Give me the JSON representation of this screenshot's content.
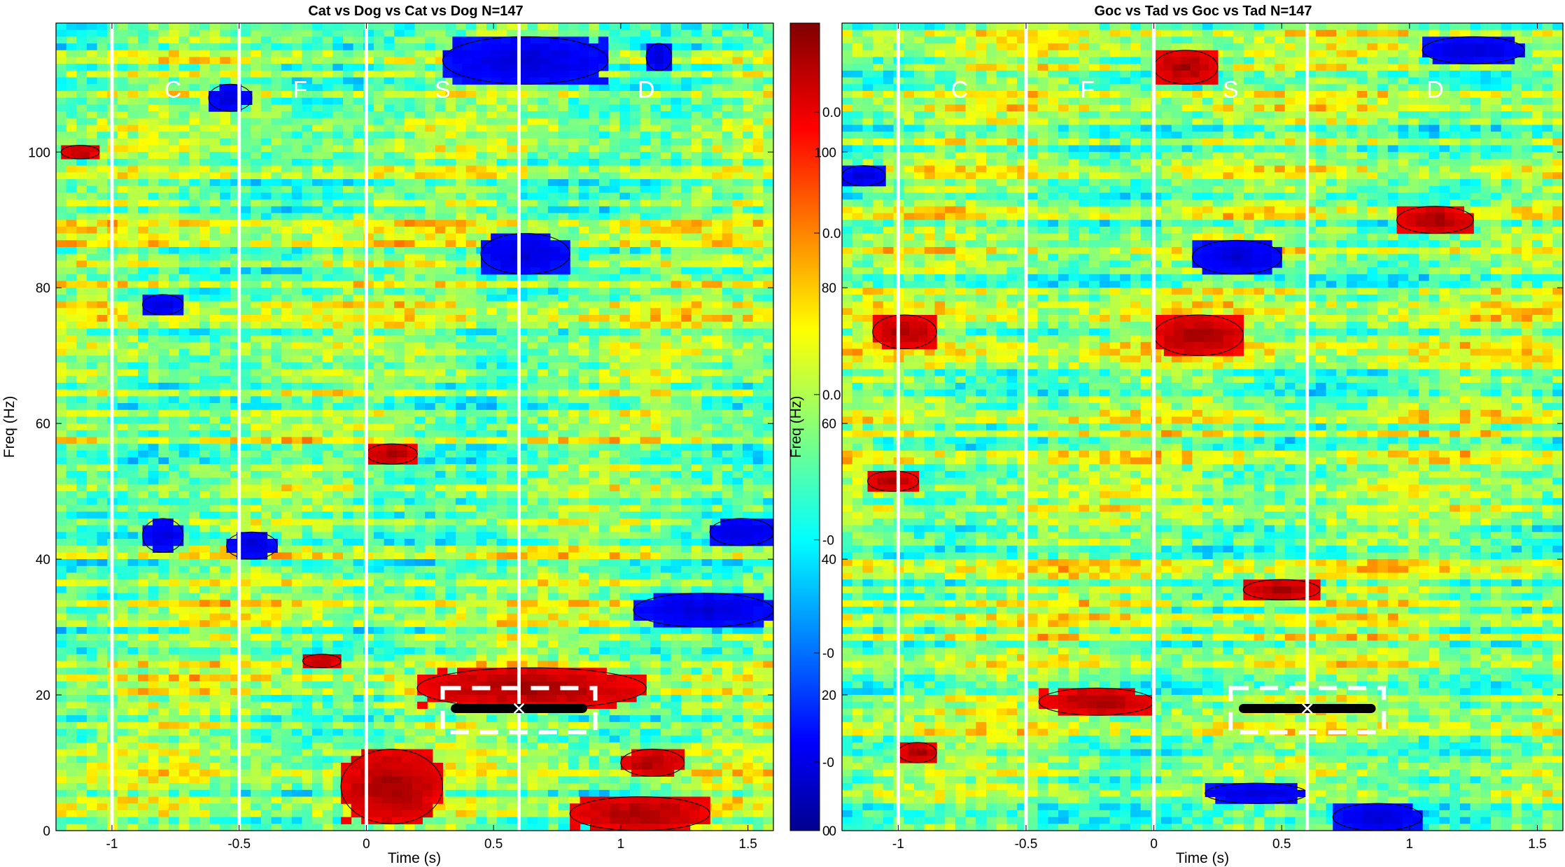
{
  "chart_data": [
    {
      "type": "heatmap",
      "title": "Cat vs Dog vs Cat vs Dog N=147",
      "xlabel": "Time (s)",
      "ylabel": "Freq (Hz)",
      "xlim": [
        -1.22,
        1.6
      ],
      "ylim": [
        0,
        119
      ],
      "x_ticks": [
        -1,
        -0.5,
        0,
        0.5,
        1,
        1.5
      ],
      "x_tick_labels": [
        "-1",
        "-0.5",
        "0",
        "0.5",
        "1",
        "1.5"
      ],
      "y_ticks": [
        0,
        20,
        40,
        60,
        80,
        100
      ],
      "y_tick_labels": [
        "0",
        "20",
        "40",
        "60",
        "80",
        "100"
      ],
      "event_lines": [
        -1.0,
        -0.5,
        0.0,
        0.6
      ],
      "segment_labels": [
        {
          "text": "C",
          "x": -0.76,
          "y": 108
        },
        {
          "text": "F",
          "x": -0.26,
          "y": 108
        },
        {
          "text": "S",
          "x": 0.3,
          "y": 108
        },
        {
          "text": "D",
          "x": 1.1,
          "y": 108
        }
      ],
      "highlight_box": {
        "x_range": [
          0.3,
          0.9
        ],
        "f_range": [
          14.5,
          21
        ],
        "center": [
          0.6,
          18
        ]
      },
      "bar": {
        "x_range": [
          0.35,
          0.85
        ],
        "f": 18
      },
      "clusters": [
        {
          "sign": "neg",
          "x": [
            0.3,
            0.95
          ],
          "f": [
            110,
            117
          ]
        },
        {
          "sign": "neg",
          "x": [
            0.45,
            0.8
          ],
          "f": [
            82,
            88
          ]
        },
        {
          "sign": "neg",
          "x": [
            -0.62,
            -0.45
          ],
          "f": [
            106,
            110
          ]
        },
        {
          "sign": "neg",
          "x": [
            -0.88,
            -0.72
          ],
          "f": [
            76,
            79
          ]
        },
        {
          "sign": "neg",
          "x": [
            -0.88,
            -0.72
          ],
          "f": [
            41,
            46
          ]
        },
        {
          "sign": "neg",
          "x": [
            -0.55,
            -0.35
          ],
          "f": [
            40,
            44
          ]
        },
        {
          "sign": "neg",
          "x": [
            1.05,
            1.6
          ],
          "f": [
            30,
            35
          ]
        },
        {
          "sign": "neg",
          "x": [
            1.35,
            1.6
          ],
          "f": [
            42,
            46
          ]
        },
        {
          "sign": "neg",
          "x": [
            1.1,
            1.2
          ],
          "f": [
            112,
            116
          ]
        },
        {
          "sign": "pos",
          "x": [
            0.2,
            1.1
          ],
          "f": [
            18,
            24
          ]
        },
        {
          "sign": "pos",
          "x": [
            -0.1,
            0.3
          ],
          "f": [
            1,
            12
          ]
        },
        {
          "sign": "pos",
          "x": [
            0.8,
            1.35
          ],
          "f": [
            0,
            5
          ]
        },
        {
          "sign": "pos",
          "x": [
            1.0,
            1.25
          ],
          "f": [
            8,
            12
          ]
        },
        {
          "sign": "pos",
          "x": [
            0.0,
            0.2
          ],
          "f": [
            54,
            57
          ]
        },
        {
          "sign": "pos",
          "x": [
            -0.25,
            -0.1
          ],
          "f": [
            24,
            26
          ]
        },
        {
          "sign": "pos",
          "x": [
            -1.2,
            -1.05
          ],
          "f": [
            99,
            101
          ]
        }
      ]
    },
    {
      "type": "heatmap",
      "title": "Goc vs Tad vs Goc vs Tad N=147",
      "xlabel": "Time (s)",
      "ylabel": "Freq (Hz)",
      "xlim": [
        -1.22,
        1.6
      ],
      "ylim": [
        0,
        119
      ],
      "x_ticks": [
        -1,
        -0.5,
        0,
        0.5,
        1,
        1.5
      ],
      "x_tick_labels": [
        "-1",
        "-0.5",
        "0",
        "0.5",
        "1",
        "1.5"
      ],
      "y_ticks": [
        0,
        20,
        40,
        60,
        80,
        100
      ],
      "y_tick_labels": [
        "0",
        "20",
        "40",
        "60",
        "80",
        "100"
      ],
      "event_lines": [
        -1.0,
        -0.5,
        0.0,
        0.6
      ],
      "segment_labels": [
        {
          "text": "C",
          "x": -0.76,
          "y": 108
        },
        {
          "text": "F",
          "x": -0.26,
          "y": 108
        },
        {
          "text": "S",
          "x": 0.3,
          "y": 108
        },
        {
          "text": "D",
          "x": 1.1,
          "y": 108
        }
      ],
      "highlight_box": {
        "x_range": [
          0.3,
          0.9
        ],
        "f_range": [
          14.5,
          21
        ],
        "center": [
          0.6,
          18
        ]
      },
      "bar": {
        "x_range": [
          0.35,
          0.85
        ],
        "f": 18
      },
      "clusters": [
        {
          "sign": "pos",
          "x": [
            -0.45,
            0.0
          ],
          "f": [
            17,
            21
          ]
        },
        {
          "sign": "pos",
          "x": [
            0.0,
            0.35
          ],
          "f": [
            70,
            76
          ]
        },
        {
          "sign": "pos",
          "x": [
            -1.1,
            -0.85
          ],
          "f": [
            71,
            76
          ]
        },
        {
          "sign": "pos",
          "x": [
            -1.12,
            -0.92
          ],
          "f": [
            50,
            53
          ]
        },
        {
          "sign": "pos",
          "x": [
            0.95,
            1.25
          ],
          "f": [
            88,
            92
          ]
        },
        {
          "sign": "pos",
          "x": [
            0.0,
            0.25
          ],
          "f": [
            110,
            115
          ]
        },
        {
          "sign": "pos",
          "x": [
            -1.0,
            -0.85
          ],
          "f": [
            10,
            13
          ]
        },
        {
          "sign": "pos",
          "x": [
            0.35,
            0.65
          ],
          "f": [
            34,
            37
          ]
        },
        {
          "sign": "neg",
          "x": [
            0.15,
            0.5
          ],
          "f": [
            82,
            87
          ]
        },
        {
          "sign": "neg",
          "x": [
            0.2,
            0.6
          ],
          "f": [
            4,
            7
          ]
        },
        {
          "sign": "neg",
          "x": [
            0.7,
            1.05
          ],
          "f": [
            0,
            4
          ]
        },
        {
          "sign": "neg",
          "x": [
            1.05,
            1.45
          ],
          "f": [
            113,
            117
          ]
        },
        {
          "sign": "neg",
          "x": [
            -1.22,
            -1.05
          ],
          "f": [
            95,
            98
          ]
        }
      ]
    }
  ],
  "colorbar": {
    "tick_labels": [
      "0.0",
      "0.0",
      "0.0",
      "-0",
      "-0",
      "-0",
      "0"
    ],
    "tick_levels": [
      0.89,
      0.74,
      0.54,
      0.36,
      0.22,
      0.085,
      0.0
    ]
  }
}
